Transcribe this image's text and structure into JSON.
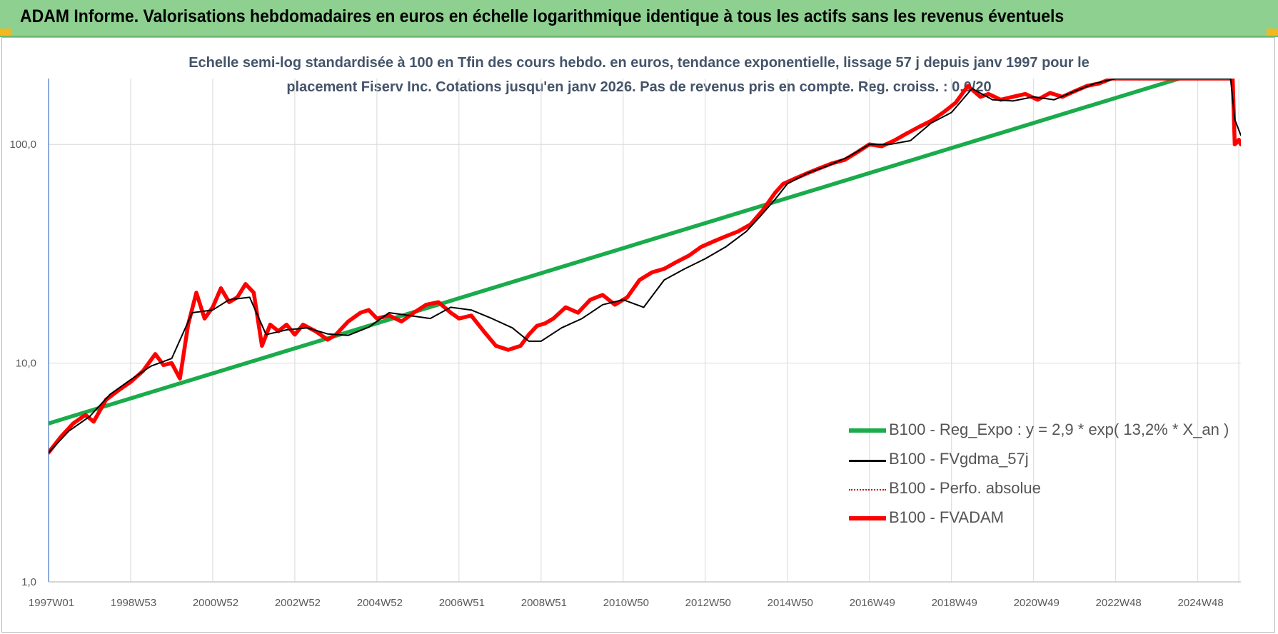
{
  "header": {
    "title": "ADAM Informe. Valorisations hebdomadaires en euros en échelle logarithmique identique à tous les actifs sans les revenus éventuels"
  },
  "colors": {
    "banner": "#8dd08f",
    "regression": "#1aab4b",
    "moving_average": "#000000",
    "absolute": "#c00000",
    "fvadam": "#ff0000",
    "subtitle": "#44546a"
  },
  "chart_data": {
    "type": "line",
    "subtitle_line1": "Echelle semi-log standardisée à 100 en Tfin des cours hebdo. en euros, tendance exponentielle, lissage 57 j depuis janv 1997 pour le",
    "subtitle_line2": "placement Fiserv Inc. Cotations jusqu'en janv 2026. Pas de revenus pris en compte. Reg. croiss. : 0,0/20",
    "y_scale": "log",
    "ylim": [
      1,
      200
    ],
    "xlim": [
      1997.0,
      2026.05
    ],
    "grid": true,
    "legend_position": "bottom-right",
    "y_ticks": [
      {
        "value": 1,
        "label": "1,0"
      },
      {
        "value": 10,
        "label": "10,0"
      },
      {
        "value": 100,
        "label": "100,0"
      }
    ],
    "x_ticks": [
      {
        "value": 1997.0,
        "label": "1997W01"
      },
      {
        "value": 1999.0,
        "label": "1998W53"
      },
      {
        "value": 2001.0,
        "label": "2000W52"
      },
      {
        "value": 2003.0,
        "label": "2002W52"
      },
      {
        "value": 2005.0,
        "label": "2004W52"
      },
      {
        "value": 2007.0,
        "label": "2006W51"
      },
      {
        "value": 2009.0,
        "label": "2008W51"
      },
      {
        "value": 2011.0,
        "label": "2010W50"
      },
      {
        "value": 2013.0,
        "label": "2012W50"
      },
      {
        "value": 2015.0,
        "label": "2014W50"
      },
      {
        "value": 2017.0,
        "label": "2016W49"
      },
      {
        "value": 2019.0,
        "label": "2018W49"
      },
      {
        "value": 2021.0,
        "label": "2020W49"
      },
      {
        "value": 2023.0,
        "label": "2022W48"
      },
      {
        "value": 2025.0,
        "label": "2024W48"
      }
    ],
    "series": [
      {
        "name": "B100 - Reg_Expo : y = 2,9 * exp( 13,2% *  X_an )",
        "color": "#1aab4b",
        "style": "solid-thick",
        "x": [
          1997.0,
          2024.55
        ],
        "y": [
          5.3,
          200
        ]
      },
      {
        "name": "B100 - FVgdma_57j",
        "color": "#000000",
        "style": "solid-thin",
        "x": [
          1997.0,
          1997.5,
          1998.0,
          1998.5,
          1999.0,
          1999.5,
          2000.0,
          2000.5,
          2001.0,
          2001.4,
          2001.9,
          2002.3,
          2002.8,
          2003.3,
          2003.8,
          2004.3,
          2004.8,
          2005.3,
          2005.8,
          2006.3,
          2006.8,
          2007.3,
          2007.8,
          2008.3,
          2008.7,
          2009.0,
          2009.5,
          2010.0,
          2010.5,
          2011.0,
          2011.5,
          2012.0,
          2012.5,
          2013.0,
          2013.5,
          2014.0,
          2014.3,
          2014.7,
          2015.0,
          2015.5,
          2016.0,
          2016.5,
          2017.0,
          2017.5,
          2018.0,
          2018.5,
          2019.0,
          2019.5,
          2020.0,
          2020.5,
          2021.0,
          2021.5,
          2022.0,
          2022.5,
          2023.0,
          2023.5,
          2024.0,
          2025.8,
          2025.9,
          2026.05
        ],
        "y": [
          3.9,
          4.9,
          5.7,
          7.2,
          8.4,
          9.7,
          10.5,
          17,
          17.5,
          19.5,
          20,
          13.5,
          14.2,
          14.5,
          13.6,
          13.4,
          14.6,
          17,
          16.5,
          16,
          18,
          17.5,
          16,
          14.5,
          12.6,
          12.6,
          14.5,
          16,
          18.5,
          19.5,
          18,
          24,
          27,
          30,
          34,
          40,
          46,
          56,
          66,
          74,
          80,
          88,
          100,
          100,
          104,
          125,
          140,
          180,
          160,
          158,
          165,
          160,
          175,
          190,
          200,
          200,
          200,
          200,
          130,
          110
        ]
      },
      {
        "name": "B100 - Perfo. absolue",
        "color": "#c00000",
        "style": "dotted",
        "x": [],
        "y": []
      },
      {
        "name": "B100 - FVADAM",
        "color": "#ff0000",
        "style": "solid-thick",
        "x": [
          1997.0,
          1997.3,
          1997.6,
          1997.9,
          1998.1,
          1998.4,
          1998.7,
          1999.0,
          1999.3,
          1999.6,
          1999.8,
          2000.0,
          2000.2,
          2000.4,
          2000.6,
          2000.8,
          2001.0,
          2001.2,
          2001.4,
          2001.6,
          2001.8,
          2002.0,
          2002.2,
          2002.4,
          2002.6,
          2002.8,
          2003.0,
          2003.2,
          2003.5,
          2003.8,
          2004.0,
          2004.3,
          2004.6,
          2004.8,
          2005.0,
          2005.3,
          2005.6,
          2005.9,
          2006.2,
          2006.5,
          2006.8,
          2007.0,
          2007.3,
          2007.6,
          2007.9,
          2008.2,
          2008.5,
          2008.7,
          2008.9,
          2009.1,
          2009.3,
          2009.6,
          2009.9,
          2010.2,
          2010.5,
          2010.8,
          2011.1,
          2011.4,
          2011.7,
          2012.0,
          2012.3,
          2012.6,
          2012.9,
          2013.2,
          2013.5,
          2013.8,
          2014.1,
          2014.4,
          2014.7,
          2014.9,
          2015.2,
          2015.5,
          2015.8,
          2016.1,
          2016.4,
          2016.7,
          2017.0,
          2017.3,
          2017.6,
          2017.9,
          2018.2,
          2018.5,
          2018.8,
          2019.1,
          2019.4,
          2019.7,
          2019.9,
          2020.2,
          2020.5,
          2020.8,
          2021.1,
          2021.4,
          2021.7,
          2022.0,
          2022.3,
          2022.6,
          2022.9,
          2023.2,
          2023.5,
          2023.8,
          2025.85,
          2025.9,
          2025.95,
          2026.0,
          2026.05
        ],
        "y": [
          3.9,
          4.6,
          5.3,
          5.8,
          5.4,
          6.8,
          7.5,
          8.2,
          9.2,
          11,
          9.8,
          10,
          8.5,
          15,
          21,
          16,
          18,
          22,
          19,
          20,
          23,
          21,
          12,
          15,
          14,
          15,
          13.5,
          15,
          14,
          12.8,
          13.5,
          15.5,
          17,
          17.5,
          16,
          16.5,
          15.5,
          17,
          18.5,
          19,
          17,
          16,
          16.5,
          14,
          12,
          11.5,
          12,
          13.5,
          14.8,
          15.2,
          16,
          18,
          17,
          19.5,
          20.5,
          18.5,
          20,
          24,
          26,
          27,
          29,
          31,
          34,
          36,
          38,
          40,
          43,
          50,
          60,
          66,
          70,
          74,
          78,
          82,
          85,
          92,
          100,
          98,
          104,
          112,
          120,
          128,
          140,
          155,
          185,
          165,
          170,
          160,
          165,
          170,
          160,
          172,
          165,
          175,
          185,
          190,
          200,
          200,
          200,
          200,
          200,
          100,
          102,
          105,
          100
        ]
      }
    ]
  }
}
